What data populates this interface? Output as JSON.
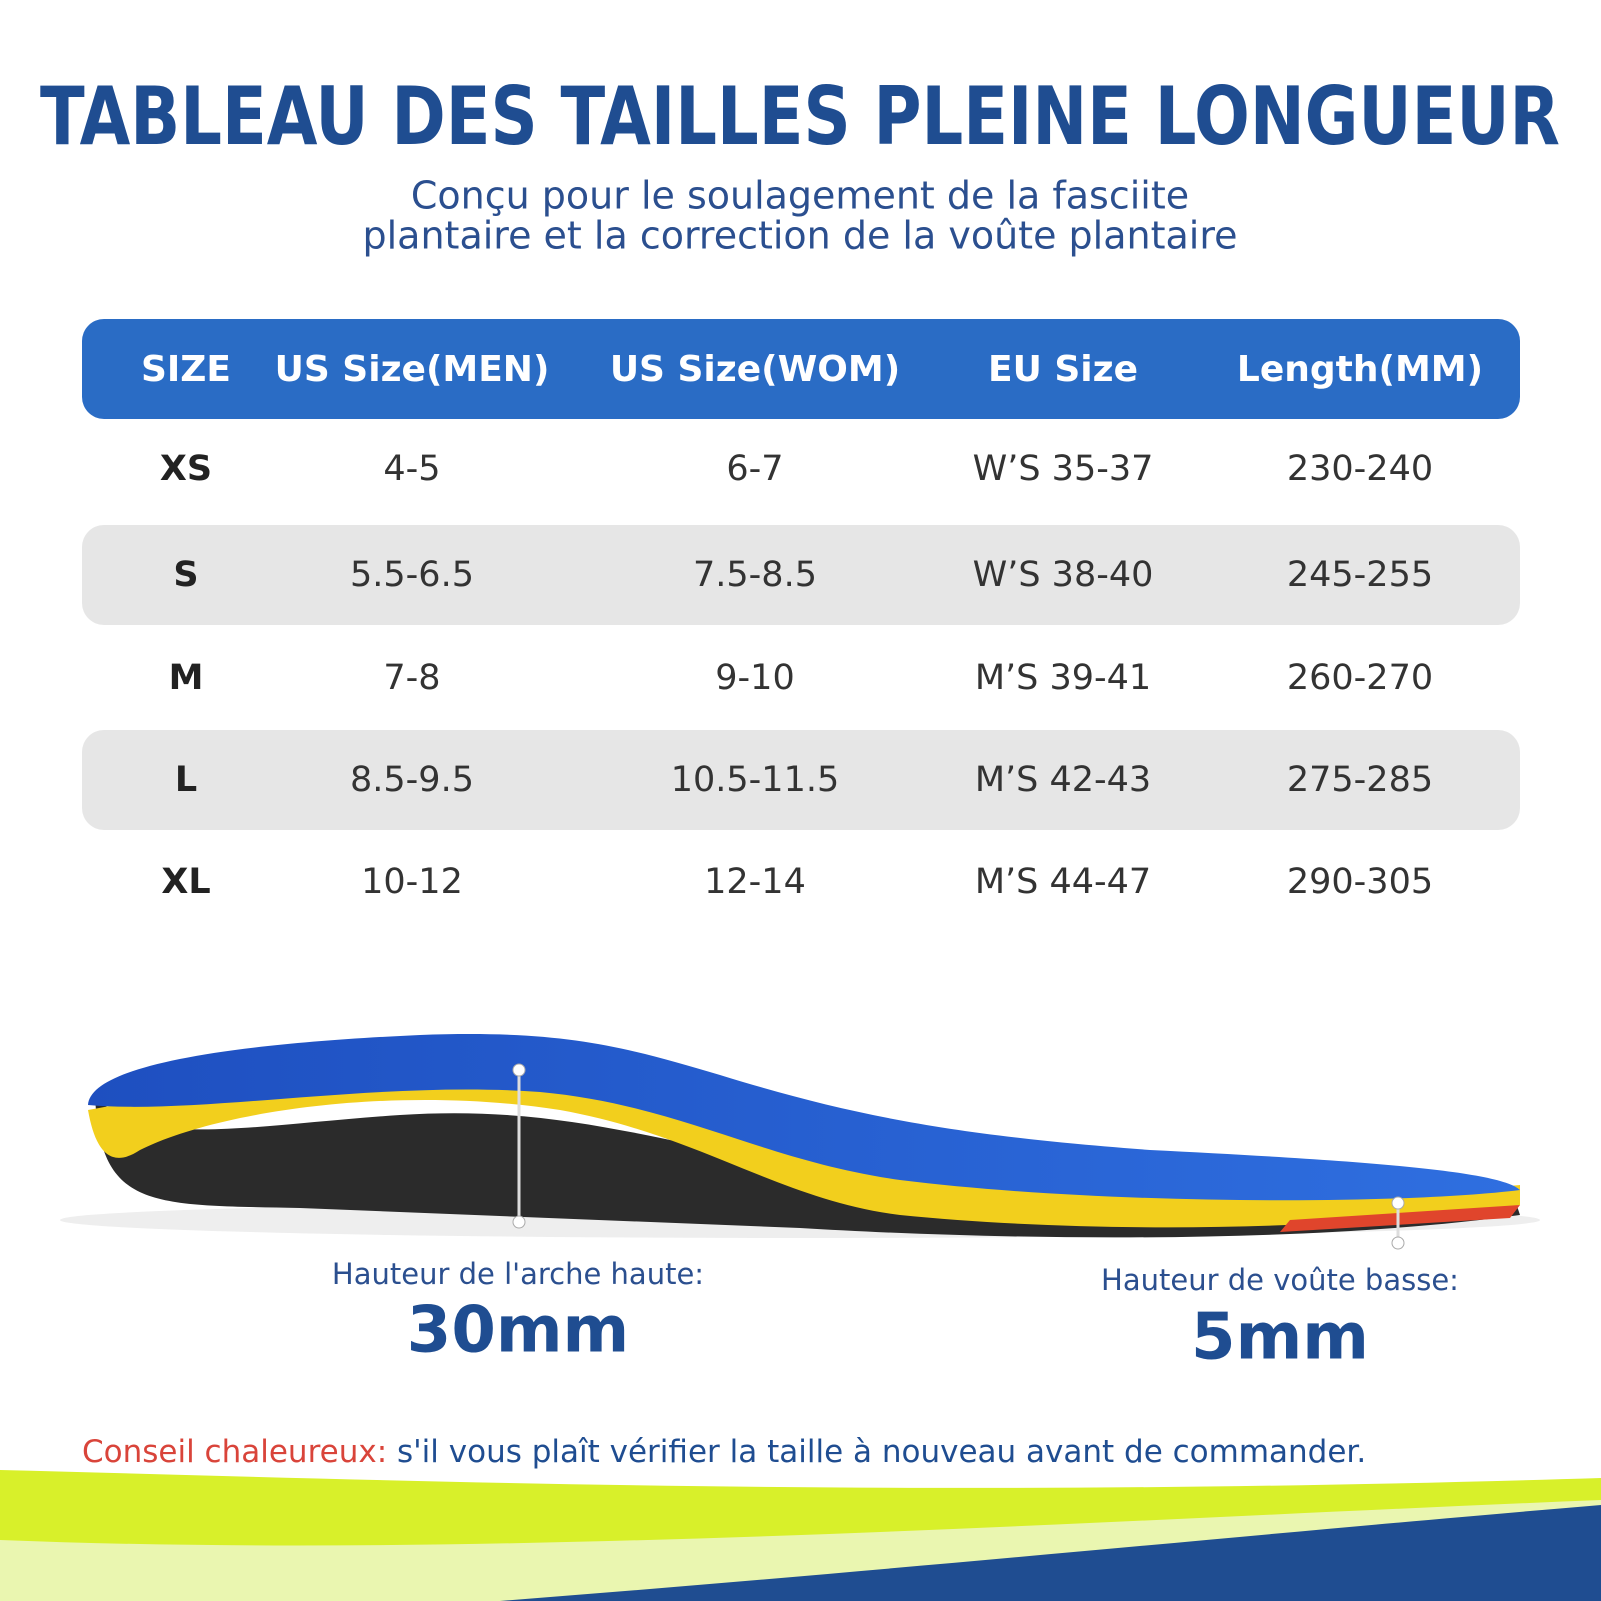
{
  "header": {
    "title": "TABLEAU DES TAILLES PLEINE LONGUEUR",
    "subtitle": [
      "Conçu pour le soulagement de la fasciite",
      "plantaire et la correction de la voûte plantaire"
    ]
  },
  "table": {
    "columns": [
      "SIZE",
      "US Size(MEN)",
      "US Size(WOM)",
      "EU Size",
      "Length(MM)"
    ],
    "rows": [
      [
        "XS",
        "4-5",
        "6-7",
        "W’S 35-37",
        "230-240"
      ],
      [
        "S",
        "5.5-6.5",
        "7.5-8.5",
        "W’S 38-40",
        "245-255"
      ],
      [
        "M",
        "7-8",
        "9-10",
        "M’S 39-41",
        "260-270"
      ],
      [
        "L",
        "8.5-9.5",
        "10.5-11.5",
        "M’S 42-43",
        "275-285"
      ],
      [
        "XL",
        "10-12",
        "12-14",
        "M’S 44-47",
        "290-305"
      ]
    ]
  },
  "annotations": {
    "high_arch": {
      "label": "Hauteur de l'arche haute:",
      "value": "30mm"
    },
    "low_arch": {
      "label": "Hauteur de voûte basse:",
      "value": "5mm"
    }
  },
  "tip": {
    "label": "Conseil chaleureux:",
    "text": " s'il vous plaît vérifier la taille à nouveau avant de commander."
  }
}
